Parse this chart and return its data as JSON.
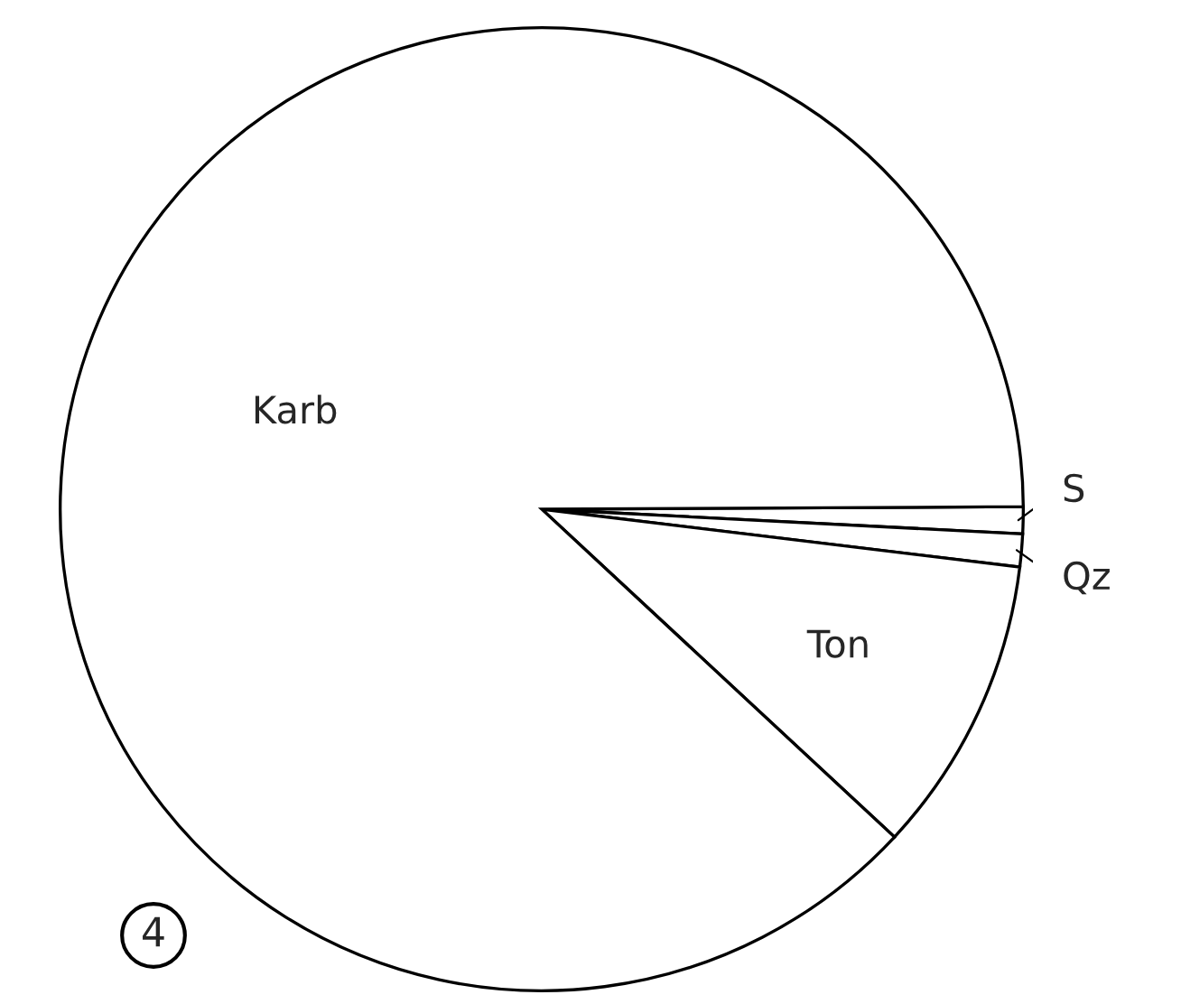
{
  "chart_data": {
    "type": "pie",
    "categories": [
      "S",
      "Qz",
      "Ton",
      "Karb"
    ],
    "values": [
      0.9,
      1.1,
      10,
      88
    ],
    "colors": [
      "#ffffff",
      "#ffffff",
      "#ffffff",
      "#ffffff"
    ],
    "annotations": [
      "4"
    ]
  }
}
